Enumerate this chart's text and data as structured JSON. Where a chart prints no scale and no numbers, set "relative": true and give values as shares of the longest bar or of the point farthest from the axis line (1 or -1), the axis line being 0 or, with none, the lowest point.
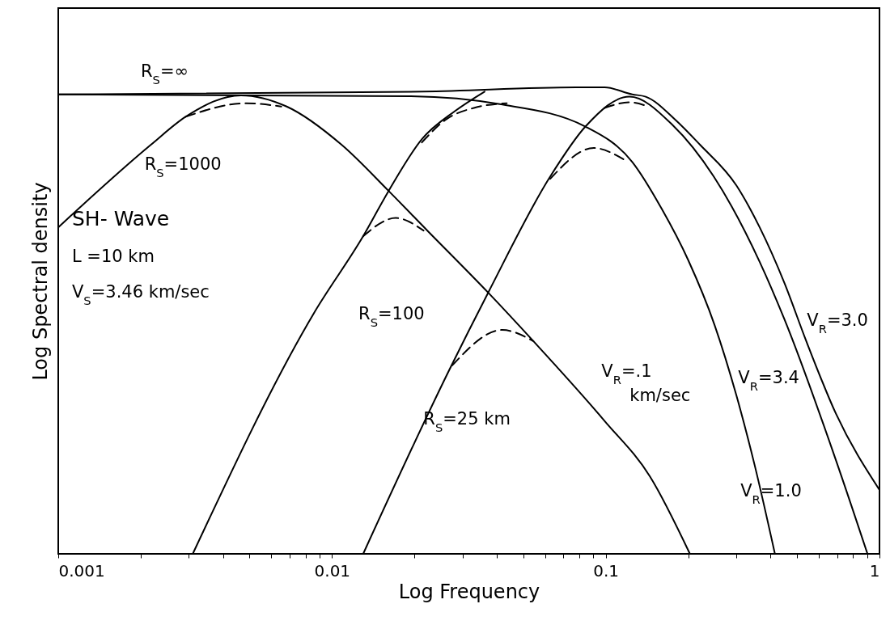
{
  "chart_data": {
    "type": "line",
    "relative": true,
    "xlabel": "Log Frequency",
    "ylabel": "Log Spectral density",
    "log": "x",
    "xlim": [
      0.001,
      1
    ],
    "grid": false,
    "marker": "none",
    "xticks": [
      0.001,
      {
        "value": 0.002,
        "label": null
      },
      {
        "value": 0.003,
        "label": null
      },
      {
        "value": 0.004,
        "label": null
      },
      {
        "value": 0.005,
        "label": null
      },
      {
        "value": 0.006,
        "label": null
      },
      {
        "value": 0.007,
        "label": null
      },
      {
        "value": 0.008,
        "label": null
      },
      {
        "value": 0.009,
        "label": null
      },
      0.01,
      {
        "value": 0.02,
        "label": null
      },
      {
        "value": 0.03,
        "label": null
      },
      {
        "value": 0.04,
        "label": null
      },
      {
        "value": 0.05,
        "label": null
      },
      {
        "value": 0.06,
        "label": null
      },
      {
        "value": 0.07,
        "label": null
      },
      {
        "value": 0.08,
        "label": null
      },
      {
        "value": 0.09,
        "label": null
      },
      0.1,
      {
        "value": 0.2,
        "label": null
      },
      {
        "value": 0.3,
        "label": null
      },
      {
        "value": 0.4,
        "label": null
      },
      {
        "value": 0.5,
        "label": null
      },
      {
        "value": 0.6,
        "label": null
      },
      {
        "value": 0.7,
        "label": null
      },
      {
        "value": 0.8,
        "label": null
      },
      {
        "value": 0.9,
        "label": null
      },
      1
    ],
    "series": [
      {
        "color": "#000000",
        "line_style": "solid",
        "x": [
          0.001,
          0.0216,
          0.078,
          0.099,
          0.125,
          0.14,
          0.18,
          0.221,
          0.3,
          0.365,
          0.45,
          0.537,
          0.694,
          1
        ],
        "values": [
          0.985,
          0.991,
          1,
          1,
          0.985,
          0.98,
          0.93,
          0.877,
          0.79,
          0.7,
          0.58,
          0.46,
          0.3,
          0.137
        ]
      },
      {
        "color": "#000000",
        "line_style": "solid",
        "x": [
          0.001,
          0.019,
          0.041,
          0.0843,
          0.125,
          0.16,
          0.2,
          0.25,
          0.3,
          0.35,
          0.415
        ],
        "values": [
          0.985,
          0.981,
          0.964,
          0.916,
          0.84,
          0.74,
          0.63,
          0.49,
          0.34,
          0.19,
          0
        ]
      },
      {
        "color": "#000000",
        "line_style": "solid",
        "x": [
          0.001,
          0.00218,
          0.00292,
          0.00465,
          0.00683,
          0.01084,
          0.0161,
          0.0223,
          0.0372,
          0.0544,
          0.099,
          0.145,
          0.203
        ],
        "values": [
          0.7,
          0.877,
          0.937,
          0.983,
          0.959,
          0.877,
          0.778,
          0.693,
          0.56,
          0.456,
          0.285,
          0.166,
          0
        ]
      },
      {
        "color": "#000000",
        "line_style": "solid",
        "x": [
          0.0031,
          0.00861,
          0.013,
          0.0161,
          0.0213,
          0.0281,
          0.0361
        ],
        "values": [
          0,
          0.517,
          0.681,
          0.778,
          0.889,
          0.949,
          0.991
        ]
      },
      {
        "color": "#000000",
        "line_style": "solid",
        "x": [
          0.013,
          0.0268,
          0.0372,
          0.0627,
          0.0843,
          0.122,
          0.175,
          0.248,
          0.365,
          0.448,
          0.694,
          0.904
        ],
        "values": [
          0,
          0.394,
          0.56,
          0.809,
          0.916,
          0.98,
          0.92,
          0.809,
          0.626,
          0.505,
          0.2,
          0
        ]
      },
      {
        "color": "#000000",
        "line_style": "dashed",
        "x": [
          0.00292,
          0.00486,
          0.00653
        ],
        "values": [
          0.937,
          0.966,
          0.959
        ]
      },
      {
        "color": "#000000",
        "line_style": "dashed",
        "x": [
          0.013,
          0.0171,
          0.0216
        ],
        "values": [
          0.681,
          0.72,
          0.693
        ]
      },
      {
        "color": "#000000",
        "line_style": "dashed",
        "x": [
          0.0275,
          0.0419,
          0.0544
        ],
        "values": [
          0.404,
          0.48,
          0.456
        ]
      },
      {
        "color": "#000000",
        "line_style": "dashed",
        "x": [
          0.0213,
          0.0262,
          0.033,
          0.0435
        ],
        "values": [
          0.882,
          0.932,
          0.956,
          0.966
        ]
      },
      {
        "color": "#000000",
        "line_style": "dashed",
        "x": [
          0.0627,
          0.0904,
          0.116
        ],
        "values": [
          0.804,
          0.87,
          0.846
        ]
      },
      {
        "color": "#000000",
        "line_style": "dashed",
        "x": [
          0.099,
          0.122,
          0.143
        ],
        "values": [
          0.956,
          0.968,
          0.959
        ]
      }
    ],
    "annotations": [
      "R$_{S}$=∞",
      "R$_{S}$=1000",
      "SH- Wave",
      "L =10 km",
      "V$_{S}$=3.46 km/sec",
      "R$_{S}$=100",
      "R$_{S}$=25 km",
      "V$_{R}$=.1",
      "km/sec",
      "V$_{R}$=1.0",
      "V$_{R}$=3.4",
      "V$_{R}$=3.0"
    ]
  }
}
